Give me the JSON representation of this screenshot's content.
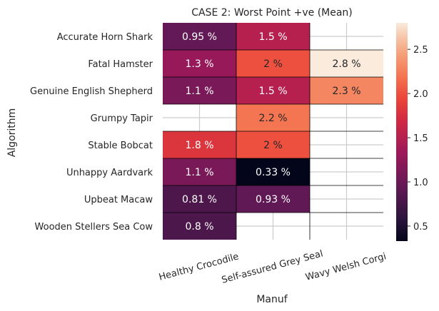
{
  "chart_data": {
    "type": "heatmap",
    "title": "CASE 2: Worst Point +ve (Mean)",
    "xlabel": "Manuf",
    "ylabel": "Algorithm",
    "columns": [
      "Healthy Crocodile",
      "Self-assured Grey Seal",
      "Wavy Welsh Corgi"
    ],
    "rows": [
      "Accurate Horn Shark",
      "Fatal Hamster",
      "Genuine English Shepherd",
      "Grumpy Tapir",
      "Stable Bobcat",
      "Unhappy Aardvark",
      "Upbeat Macaw",
      "Wooden Stellers Sea Cow"
    ],
    "values": [
      [
        0.95,
        1.5,
        null
      ],
      [
        1.3,
        2.0,
        2.8
      ],
      [
        1.1,
        1.5,
        2.3
      ],
      [
        null,
        2.2,
        null
      ],
      [
        1.8,
        2.0,
        null
      ],
      [
        1.1,
        0.33,
        null
      ],
      [
        0.81,
        0.93,
        null
      ],
      [
        0.8,
        null,
        null
      ]
    ],
    "labels": [
      [
        "0.95 %",
        "1.5 %",
        ""
      ],
      [
        "1.3 %",
        "2 %",
        "2.8 %"
      ],
      [
        "1.1 %",
        "1.5 %",
        "2.3 %"
      ],
      [
        "",
        "2.2 %",
        ""
      ],
      [
        "1.8 %",
        "2 %",
        ""
      ],
      [
        "1.1 %",
        "0.33 %",
        ""
      ],
      [
        "0.81 %",
        "0.93 %",
        ""
      ],
      [
        "0.8 %",
        "",
        ""
      ]
    ],
    "colorbar": {
      "min": 0.33,
      "max": 2.8,
      "ticks": [
        0.5,
        1.0,
        1.5,
        2.0,
        2.5
      ],
      "tick_labels": [
        "0.5",
        "1.0",
        "1.5",
        "2.0",
        "2.5"
      ],
      "colormap": "rocket"
    },
    "grid": true
  }
}
